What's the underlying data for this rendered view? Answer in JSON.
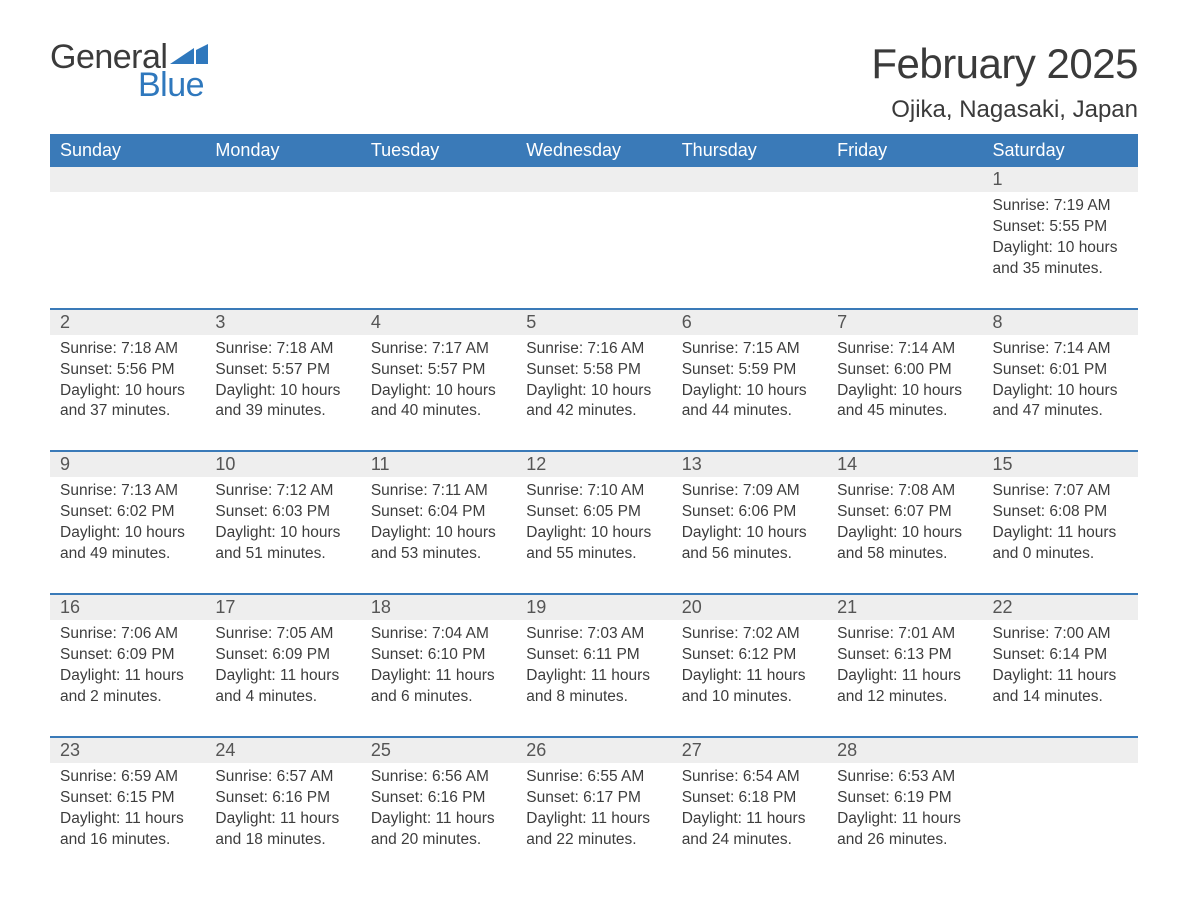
{
  "brand": {
    "general": "General",
    "blue": "Blue",
    "blue_color": "#2f78bd"
  },
  "title": "February 2025",
  "location": "Ojika, Nagasaki, Japan",
  "header_bg": "#3a7ab8",
  "header_text": "#ffffff",
  "row_sep_color": "#3a7ab8",
  "daynum_bg": "#eeeeee",
  "page_bg": "#ffffff",
  "text_color": "#3a3a3a",
  "dow": [
    "Sunday",
    "Monday",
    "Tuesday",
    "Wednesday",
    "Thursday",
    "Friday",
    "Saturday"
  ],
  "weeks": [
    [
      null,
      null,
      null,
      null,
      null,
      null,
      {
        "n": "1",
        "sunrise": "Sunrise: 7:19 AM",
        "sunset": "Sunset: 5:55 PM",
        "daylight": "Daylight: 10 hours and 35 minutes."
      }
    ],
    [
      {
        "n": "2",
        "sunrise": "Sunrise: 7:18 AM",
        "sunset": "Sunset: 5:56 PM",
        "daylight": "Daylight: 10 hours and 37 minutes."
      },
      {
        "n": "3",
        "sunrise": "Sunrise: 7:18 AM",
        "sunset": "Sunset: 5:57 PM",
        "daylight": "Daylight: 10 hours and 39 minutes."
      },
      {
        "n": "4",
        "sunrise": "Sunrise: 7:17 AM",
        "sunset": "Sunset: 5:57 PM",
        "daylight": "Daylight: 10 hours and 40 minutes."
      },
      {
        "n": "5",
        "sunrise": "Sunrise: 7:16 AM",
        "sunset": "Sunset: 5:58 PM",
        "daylight": "Daylight: 10 hours and 42 minutes."
      },
      {
        "n": "6",
        "sunrise": "Sunrise: 7:15 AM",
        "sunset": "Sunset: 5:59 PM",
        "daylight": "Daylight: 10 hours and 44 minutes."
      },
      {
        "n": "7",
        "sunrise": "Sunrise: 7:14 AM",
        "sunset": "Sunset: 6:00 PM",
        "daylight": "Daylight: 10 hours and 45 minutes."
      },
      {
        "n": "8",
        "sunrise": "Sunrise: 7:14 AM",
        "sunset": "Sunset: 6:01 PM",
        "daylight": "Daylight: 10 hours and 47 minutes."
      }
    ],
    [
      {
        "n": "9",
        "sunrise": "Sunrise: 7:13 AM",
        "sunset": "Sunset: 6:02 PM",
        "daylight": "Daylight: 10 hours and 49 minutes."
      },
      {
        "n": "10",
        "sunrise": "Sunrise: 7:12 AM",
        "sunset": "Sunset: 6:03 PM",
        "daylight": "Daylight: 10 hours and 51 minutes."
      },
      {
        "n": "11",
        "sunrise": "Sunrise: 7:11 AM",
        "sunset": "Sunset: 6:04 PM",
        "daylight": "Daylight: 10 hours and 53 minutes."
      },
      {
        "n": "12",
        "sunrise": "Sunrise: 7:10 AM",
        "sunset": "Sunset: 6:05 PM",
        "daylight": "Daylight: 10 hours and 55 minutes."
      },
      {
        "n": "13",
        "sunrise": "Sunrise: 7:09 AM",
        "sunset": "Sunset: 6:06 PM",
        "daylight": "Daylight: 10 hours and 56 minutes."
      },
      {
        "n": "14",
        "sunrise": "Sunrise: 7:08 AM",
        "sunset": "Sunset: 6:07 PM",
        "daylight": "Daylight: 10 hours and 58 minutes."
      },
      {
        "n": "15",
        "sunrise": "Sunrise: 7:07 AM",
        "sunset": "Sunset: 6:08 PM",
        "daylight": "Daylight: 11 hours and 0 minutes."
      }
    ],
    [
      {
        "n": "16",
        "sunrise": "Sunrise: 7:06 AM",
        "sunset": "Sunset: 6:09 PM",
        "daylight": "Daylight: 11 hours and 2 minutes."
      },
      {
        "n": "17",
        "sunrise": "Sunrise: 7:05 AM",
        "sunset": "Sunset: 6:09 PM",
        "daylight": "Daylight: 11 hours and 4 minutes."
      },
      {
        "n": "18",
        "sunrise": "Sunrise: 7:04 AM",
        "sunset": "Sunset: 6:10 PM",
        "daylight": "Daylight: 11 hours and 6 minutes."
      },
      {
        "n": "19",
        "sunrise": "Sunrise: 7:03 AM",
        "sunset": "Sunset: 6:11 PM",
        "daylight": "Daylight: 11 hours and 8 minutes."
      },
      {
        "n": "20",
        "sunrise": "Sunrise: 7:02 AM",
        "sunset": "Sunset: 6:12 PM",
        "daylight": "Daylight: 11 hours and 10 minutes."
      },
      {
        "n": "21",
        "sunrise": "Sunrise: 7:01 AM",
        "sunset": "Sunset: 6:13 PM",
        "daylight": "Daylight: 11 hours and 12 minutes."
      },
      {
        "n": "22",
        "sunrise": "Sunrise: 7:00 AM",
        "sunset": "Sunset: 6:14 PM",
        "daylight": "Daylight: 11 hours and 14 minutes."
      }
    ],
    [
      {
        "n": "23",
        "sunrise": "Sunrise: 6:59 AM",
        "sunset": "Sunset: 6:15 PM",
        "daylight": "Daylight: 11 hours and 16 minutes."
      },
      {
        "n": "24",
        "sunrise": "Sunrise: 6:57 AM",
        "sunset": "Sunset: 6:16 PM",
        "daylight": "Daylight: 11 hours and 18 minutes."
      },
      {
        "n": "25",
        "sunrise": "Sunrise: 6:56 AM",
        "sunset": "Sunset: 6:16 PM",
        "daylight": "Daylight: 11 hours and 20 minutes."
      },
      {
        "n": "26",
        "sunrise": "Sunrise: 6:55 AM",
        "sunset": "Sunset: 6:17 PM",
        "daylight": "Daylight: 11 hours and 22 minutes."
      },
      {
        "n": "27",
        "sunrise": "Sunrise: 6:54 AM",
        "sunset": "Sunset: 6:18 PM",
        "daylight": "Daylight: 11 hours and 24 minutes."
      },
      {
        "n": "28",
        "sunrise": "Sunrise: 6:53 AM",
        "sunset": "Sunset: 6:19 PM",
        "daylight": "Daylight: 11 hours and 26 minutes."
      },
      null
    ]
  ]
}
